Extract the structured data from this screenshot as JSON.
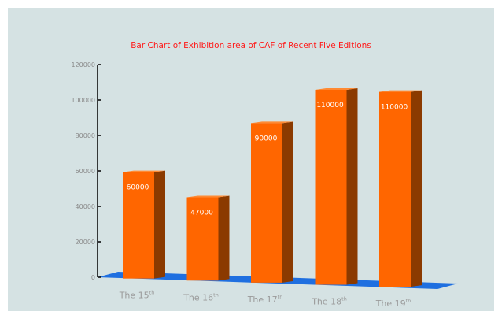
{
  "chart_data": {
    "type": "bar",
    "title": "Bar Chart of Exhibition  area of CAF of Recent Five Editions",
    "categories": [
      {
        "main": "The 15",
        "sup": "th"
      },
      {
        "main": "The 16",
        "sup": "th"
      },
      {
        "main": "The 17",
        "sup": "th"
      },
      {
        "main": "The 18",
        "sup": "th"
      },
      {
        "main": "The 19",
        "sup": "th"
      }
    ],
    "values": [
      60000,
      47000,
      90000,
      110000,
      110000
    ],
    "data_labels": [
      "60000",
      "47000",
      "90000",
      "110000",
      "110000"
    ],
    "y_ticks": [
      "0",
      "20000",
      "40000",
      "60000",
      "80000",
      "100000",
      "120000"
    ],
    "ylim": [
      0,
      120000
    ],
    "grid": false,
    "legend": "none",
    "colors": {
      "background": "#d5e2e3",
      "bar_front": "#ff6600",
      "bar_side": "#8b3a00",
      "bar_top": "#ff8a33",
      "floor": "#1f6fe0",
      "title": "#ff1a1a"
    }
  }
}
